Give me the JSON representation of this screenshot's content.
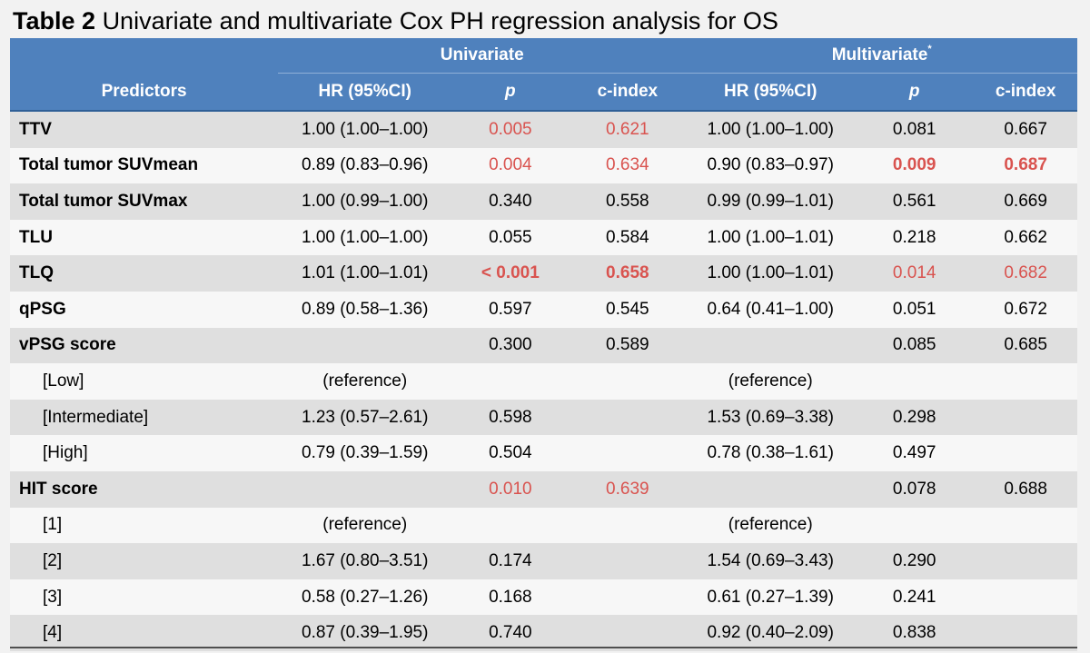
{
  "title": {
    "label": "Table 2",
    "text": "Univariate and multivariate Cox PH regression analysis for OS"
  },
  "groups": {
    "univariate": "Univariate",
    "multivariate": "Multivariate",
    "multivariate_mark": "*"
  },
  "columns": [
    "Predictors",
    "HR (95%CI)",
    "p",
    "c-index",
    "HR (95%CI)",
    "p",
    "c-index"
  ],
  "rows": [
    {
      "pred": "TTV",
      "uhr": "1.00 (1.00–1.00)",
      "up": "0.005",
      "uc": "0.621",
      "mhr": "1.00 (1.00–1.00)",
      "mp": "0.081",
      "mc": "0.667"
    },
    {
      "pred": "Total tumor SUVmean",
      "uhr": "0.89 (0.83–0.96)",
      "up": "0.004",
      "uc": "0.634",
      "mhr": "0.90 (0.83–0.97)",
      "mp": "0.009",
      "mc": "0.687"
    },
    {
      "pred": "Total tumor SUVmax",
      "uhr": "1.00 (0.99–1.00)",
      "up": "0.340",
      "uc": "0.558",
      "mhr": "0.99 (0.99–1.01)",
      "mp": "0.561",
      "mc": "0.669"
    },
    {
      "pred": "TLU",
      "uhr": "1.00 (1.00–1.00)",
      "up": "0.055",
      "uc": "0.584",
      "mhr": "1.00 (1.00–1.01)",
      "mp": "0.218",
      "mc": "0.662"
    },
    {
      "pred": "TLQ",
      "uhr": "1.01 (1.00–1.01)",
      "up": "< 0.001",
      "uc": "0.658",
      "mhr": "1.00 (1.00–1.01)",
      "mp": "0.014",
      "mc": "0.682"
    },
    {
      "pred": "qPSG",
      "uhr": "0.89 (0.58–1.36)",
      "up": "0.597",
      "uc": "0.545",
      "mhr": "0.64 (0.41–1.00)",
      "mp": "0.051",
      "mc": "0.672"
    },
    {
      "pred": "vPSG score",
      "uhr": "",
      "up": "0.300",
      "uc": "0.589",
      "mhr": "",
      "mp": "0.085",
      "mc": "0.685"
    },
    {
      "pred": "[Low]",
      "uhr": "(reference)",
      "up": "",
      "uc": "",
      "mhr": "(reference)",
      "mp": "",
      "mc": ""
    },
    {
      "pred": "[Intermediate]",
      "uhr": "1.23 (0.57–2.61)",
      "up": "0.598",
      "uc": "",
      "mhr": "1.53 (0.69–3.38)",
      "mp": "0.298",
      "mc": ""
    },
    {
      "pred": "[High]",
      "uhr": "0.79 (0.39–1.59)",
      "up": "0.504",
      "uc": "",
      "mhr": "0.78 (0.38–1.61)",
      "mp": "0.497",
      "mc": ""
    },
    {
      "pred": "HIT score",
      "uhr": "",
      "up": "0.010",
      "uc": "0.639",
      "mhr": "",
      "mp": "0.078",
      "mc": "0.688"
    },
    {
      "pred": "[1]",
      "uhr": "(reference)",
      "up": "",
      "uc": "",
      "mhr": "(reference)",
      "mp": "",
      "mc": ""
    },
    {
      "pred": "[2]",
      "uhr": "1.67 (0.80–3.51)",
      "up": "0.174",
      "uc": "",
      "mhr": "1.54 (0.69–3.43)",
      "mp": "0.290",
      "mc": ""
    },
    {
      "pred": "[3]",
      "uhr": "0.58 (0.27–1.26)",
      "up": "0.168",
      "uc": "",
      "mhr": "0.61 (0.27–1.39)",
      "mp": "0.241",
      "mc": ""
    },
    {
      "pred": "[4]",
      "uhr": "0.87 (0.39–1.95)",
      "up": "0.740",
      "uc": "",
      "mhr": "0.92 (0.40–2.09)",
      "mp": "0.838",
      "mc": ""
    }
  ],
  "colors": {
    "header_bg": "#4f81bd",
    "highlight": "#d9534f",
    "row_alt": "#dfdfdf",
    "row_plain": "#f7f7f7"
  }
}
